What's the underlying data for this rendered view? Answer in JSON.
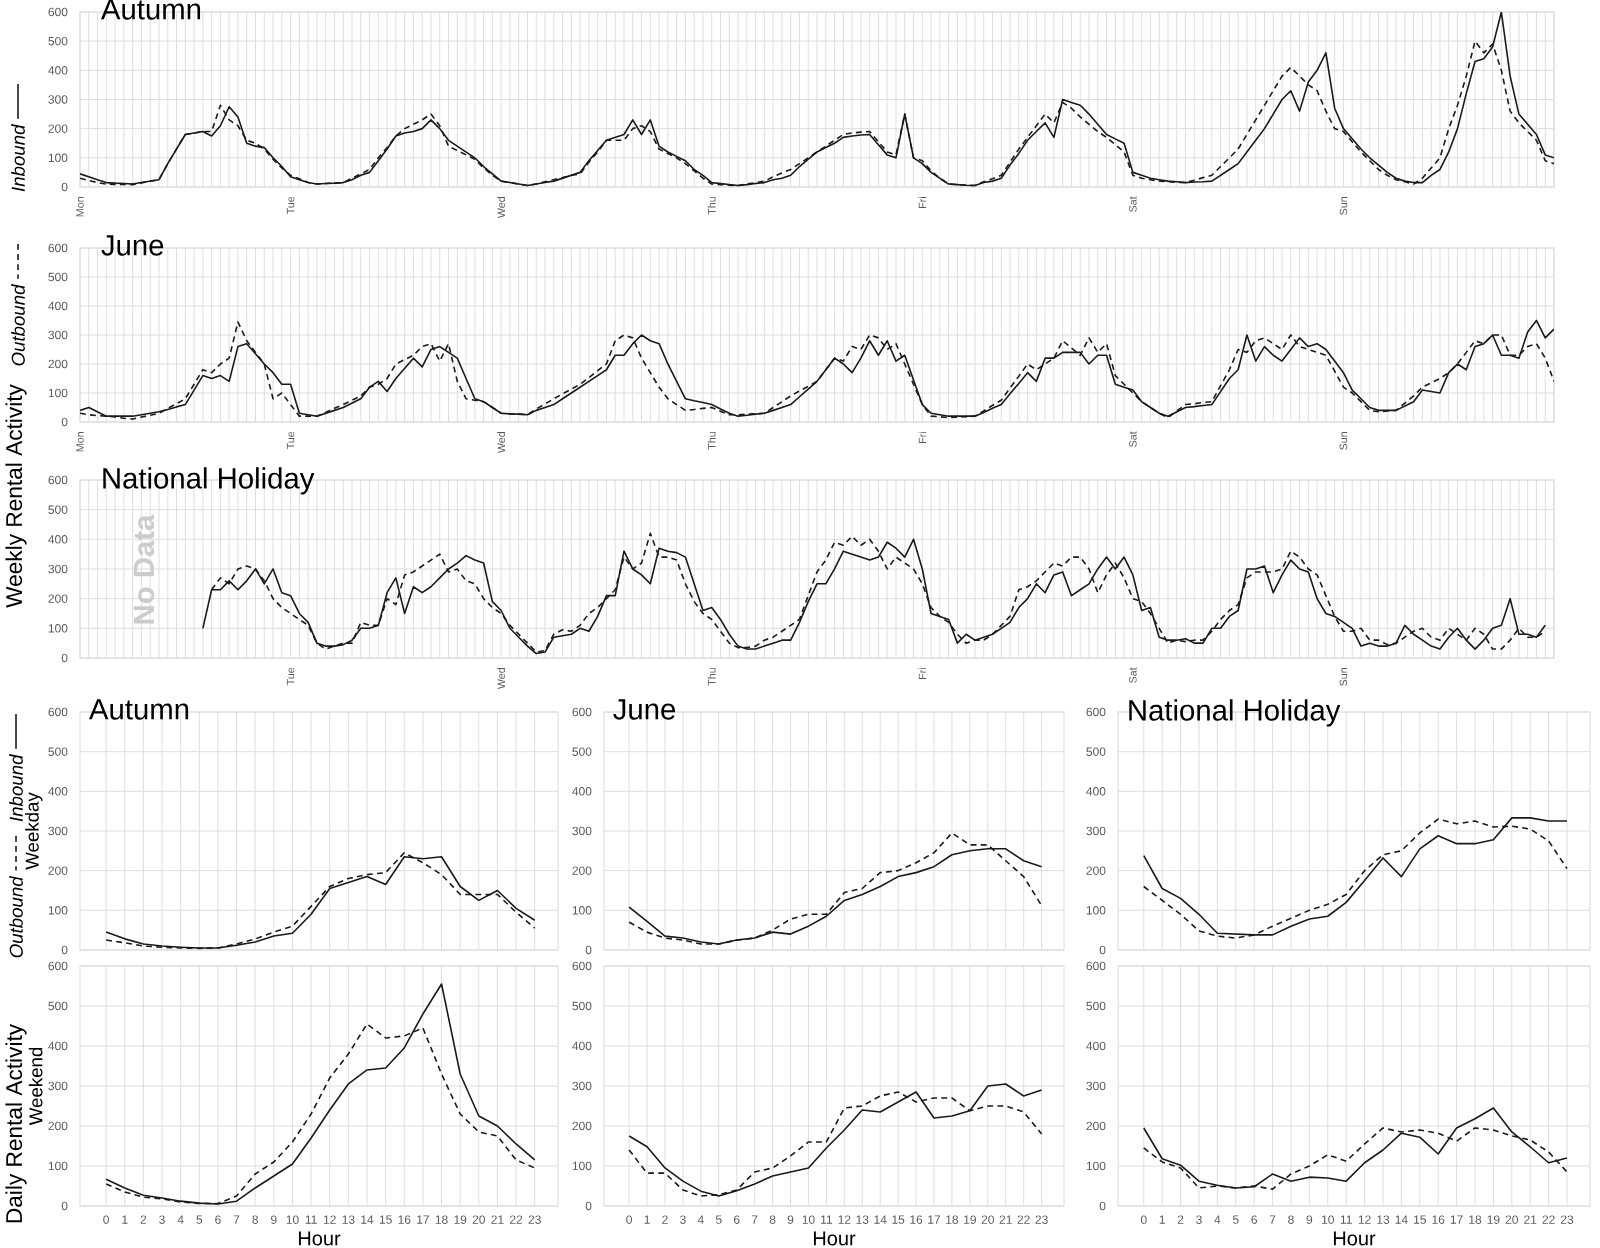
{
  "chart_data": [
    {
      "type": "line",
      "title": "Autumn",
      "legend": "left",
      "grid": true,
      "ylim": [
        0,
        600
      ],
      "yticks": [
        0,
        100,
        200,
        300,
        400,
        500,
        600
      ],
      "categories": [
        "Mon",
        null,
        null,
        null,
        null,
        null,
        null,
        null,
        null,
        null,
        null,
        null,
        null,
        null,
        null,
        null,
        null,
        null,
        null,
        null,
        null,
        null,
        null,
        null,
        "Tue",
        null,
        null,
        null,
        null,
        null,
        null,
        null,
        null,
        null,
        null,
        null,
        null,
        null,
        null,
        null,
        null,
        null,
        null,
        null,
        null,
        null,
        null,
        null,
        "Wed",
        null,
        null,
        null,
        null,
        null,
        null,
        null,
        null,
        null,
        null,
        null,
        null,
        null,
        null,
        null,
        null,
        null,
        null,
        null,
        null,
        null,
        null,
        null,
        "Thu",
        null,
        null,
        null,
        null,
        null,
        null,
        null,
        null,
        null,
        null,
        null,
        null,
        null,
        null,
        null,
        null,
        null,
        null,
        null,
        null,
        null,
        null,
        null,
        "Fri",
        null,
        null,
        null,
        null,
        null,
        null,
        null,
        null,
        null,
        null,
        null,
        null,
        null,
        null,
        null,
        null,
        null,
        null,
        null,
        null,
        null,
        null,
        null,
        "Sat",
        null,
        null,
        null,
        null,
        null,
        null,
        null,
        null,
        null,
        null,
        null,
        null,
        null,
        null,
        null,
        null,
        null,
        null,
        null,
        null,
        null,
        null,
        null,
        "Sun",
        null,
        null,
        null,
        null,
        null,
        null,
        null,
        null,
        null,
        null,
        null,
        null,
        null,
        null,
        null,
        null,
        null,
        null,
        null,
        null,
        null,
        null,
        null,
        null
      ],
      "series": [
        {
          "name": "Inbound",
          "color": "#1a1a1a",
          "line_style": "solid",
          "values": [
            45,
            35,
            25,
            15,
            13,
            12,
            10,
            15,
            20,
            25,
            80,
            130,
            180,
            185,
            190,
            175,
            210,
            275,
            240,
            150,
            140,
            135,
            100,
            70,
            35,
            25,
            15,
            10,
            12,
            13,
            15,
            25,
            40,
            50,
            90,
            130,
            175,
            185,
            190,
            200,
            230,
            200,
            160,
            140,
            120,
            100,
            70,
            45,
            20,
            15,
            10,
            5,
            10,
            15,
            20,
            30,
            40,
            50,
            90,
            125,
            160,
            170,
            180,
            230,
            180,
            230,
            140,
            120,
            105,
            90,
            60,
            40,
            15,
            12,
            8,
            5,
            8,
            12,
            15,
            25,
            30,
            40,
            70,
            95,
            120,
            135,
            150,
            170,
            175,
            178,
            180,
            145,
            110,
            100,
            250,
            100,
            80,
            50,
            30,
            10,
            8,
            6,
            5,
            15,
            20,
            30,
            75,
            115,
            160,
            190,
            220,
            170,
            300,
            290,
            280,
            250,
            215,
            180,
            165,
            150,
            50,
            40,
            30,
            25,
            20,
            18,
            15,
            17,
            18,
            20,
            40,
            60,
            80,
            120,
            160,
            200,
            250,
            300,
            330,
            260,
            360,
            400,
            460,
            270,
            200,
            165,
            130,
            100,
            75,
            50,
            30,
            20,
            15,
            15,
            40,
            60,
            120,
            200,
            320,
            430,
            440,
            480,
            600,
            380,
            250,
            215,
            180,
            110,
            100
          ]
        },
        {
          "color": "#1a1a1a",
          "line_style": "dashed",
          "values": [
            30,
            22,
            15,
            10,
            9,
            9,
            8,
            14,
            20,
            25,
            80,
            130,
            180,
            185,
            190,
            190,
            280,
            230,
            210,
            160,
            150,
            130,
            95,
            65,
            40,
            28,
            15,
            10,
            12,
            13,
            15,
            30,
            45,
            60,
            100,
            135,
            175,
            200,
            215,
            230,
            250,
            210,
            140,
            125,
            110,
            95,
            65,
            40,
            20,
            15,
            10,
            5,
            10,
            18,
            25,
            32,
            40,
            45,
            85,
            120,
            160,
            160,
            160,
            200,
            210,
            190,
            130,
            115,
            100,
            80,
            55,
            30,
            10,
            8,
            6,
            5,
            10,
            15,
            20,
            35,
            48,
            60,
            80,
            100,
            120,
            140,
            160,
            180,
            185,
            188,
            190,
            155,
            120,
            110,
            250,
            100,
            90,
            55,
            30,
            10,
            8,
            6,
            5,
            18,
            28,
            40,
            85,
            130,
            170,
            210,
            250,
            220,
            290,
            270,
            240,
            215,
            190,
            170,
            145,
            120,
            40,
            30,
            25,
            20,
            18,
            16,
            15,
            23,
            32,
            40,
            70,
            100,
            130,
            180,
            230,
            280,
            330,
            380,
            410,
            380,
            350,
            330,
            260,
            200,
            190,
            155,
            120,
            90,
            60,
            40,
            25,
            18,
            10,
            30,
            65,
            100,
            200,
            280,
            380,
            500,
            460,
            490,
            400,
            260,
            220,
            190,
            160,
            90,
            80
          ]
        }
      ]
    },
    {
      "type": "line",
      "title": "June",
      "legend": "left",
      "grid": true,
      "ylim": [
        0,
        600
      ],
      "yticks": [
        0,
        100,
        200,
        300,
        400,
        500,
        600
      ],
      "annotations": [
        "Weekly Rental Activity"
      ],
      "categories": [
        "Mon",
        null,
        null,
        null,
        null,
        null,
        null,
        null,
        null,
        null,
        null,
        null,
        null,
        null,
        null,
        null,
        null,
        null,
        null,
        null,
        null,
        null,
        null,
        null,
        "Tue",
        null,
        null,
        null,
        null,
        null,
        null,
        null,
        null,
        null,
        null,
        null,
        null,
        null,
        null,
        null,
        null,
        null,
        null,
        null,
        null,
        null,
        null,
        null,
        "Wed",
        null,
        null,
        null,
        null,
        null,
        null,
        null,
        null,
        null,
        null,
        null,
        null,
        null,
        null,
        null,
        null,
        null,
        null,
        null,
        null,
        null,
        null,
        null,
        "Thu",
        null,
        null,
        null,
        null,
        null,
        null,
        null,
        null,
        null,
        null,
        null,
        null,
        null,
        null,
        null,
        null,
        null,
        null,
        null,
        null,
        null,
        null,
        null,
        "Fri",
        null,
        null,
        null,
        null,
        null,
        null,
        null,
        null,
        null,
        null,
        null,
        null,
        null,
        null,
        null,
        null,
        null,
        null,
        null,
        null,
        null,
        null,
        null,
        "Sat",
        null,
        null,
        null,
        null,
        null,
        null,
        null,
        null,
        null,
        null,
        null,
        null,
        null,
        null,
        null,
        null,
        null,
        null,
        null,
        null,
        null,
        null,
        null,
        "Sun",
        null,
        null,
        null,
        null,
        null,
        null,
        null,
        null,
        null,
        null,
        null,
        null,
        null,
        null,
        null,
        null,
        null,
        null,
        null,
        null,
        null,
        null,
        null,
        null
      ],
      "series": [
        {
          "color": "#1a1a1a",
          "line_style": "solid",
          "values": [
            40,
            50,
            35,
            20,
            20,
            20,
            20,
            25,
            30,
            35,
            43,
            52,
            60,
            110,
            160,
            150,
            160,
            140,
            260,
            270,
            235,
            200,
            170,
            130,
            130,
            30,
            25,
            20,
            30,
            40,
            50,
            65,
            80,
            120,
            140,
            105,
            150,
            185,
            220,
            190,
            250,
            260,
            240,
            220,
            150,
            80,
            70,
            50,
            30,
            28,
            27,
            25,
            40,
            50,
            60,
            80,
            100,
            120,
            140,
            160,
            180,
            230,
            230,
            270,
            300,
            280,
            270,
            200,
            140,
            80,
            73,
            67,
            60,
            45,
            30,
            20,
            23,
            27,
            30,
            40,
            50,
            60,
            87,
            113,
            140,
            180,
            220,
            200,
            170,
            220,
            280,
            230,
            280,
            210,
            230,
            145,
            60,
            30,
            25,
            20,
            20,
            20,
            20,
            33,
            47,
            60,
            97,
            133,
            170,
            140,
            220,
            220,
            240,
            240,
            240,
            200,
            230,
            230,
            130,
            120,
            110,
            70,
            50,
            30,
            20,
            35,
            50,
            53,
            57,
            60,
            105,
            150,
            180,
            300,
            210,
            260,
            230,
            210,
            250,
            290,
            260,
            270,
            250,
            210,
            170,
            110,
            80,
            50,
            40,
            40,
            40,
            55,
            70,
            110,
            105,
            100,
            170,
            200,
            180,
            260,
            270,
            300,
            230,
            230,
            220,
            310,
            350,
            290,
            320
          ]
        },
        {
          "name": "Outbound",
          "color": "#1a1a1a",
          "line_style": "dashed",
          "values": [
            30,
            25,
            22,
            20,
            17,
            13,
            10,
            17,
            23,
            30,
            47,
            63,
            80,
            130,
            180,
            170,
            200,
            220,
            345,
            280,
            240,
            200,
            80,
            100,
            60,
            20,
            20,
            20,
            33,
            47,
            60,
            75,
            90,
            120,
            130,
            150,
            200,
            215,
            230,
            260,
            270,
            210,
            270,
            140,
            80,
            75,
            70,
            50,
            30,
            28,
            27,
            25,
            45,
            62,
            80,
            97,
            113,
            130,
            153,
            177,
            200,
            280,
            300,
            290,
            220,
            170,
            120,
            80,
            60,
            40,
            43,
            47,
            50,
            37,
            25,
            25,
            27,
            28,
            30,
            50,
            70,
            90,
            107,
            123,
            140,
            180,
            220,
            210,
            260,
            250,
            300,
            290,
            250,
            270,
            200,
            130,
            60,
            20,
            18,
            15,
            17,
            18,
            20,
            38,
            57,
            75,
            117,
            158,
            200,
            180,
            200,
            220,
            280,
            255,
            230,
            290,
            240,
            270,
            160,
            130,
            100,
            70,
            50,
            30,
            15,
            38,
            60,
            63,
            67,
            70,
            125,
            180,
            250,
            240,
            280,
            290,
            270,
            250,
            300,
            260,
            250,
            240,
            230,
            175,
            120,
            100,
            70,
            40,
            35,
            38,
            40,
            65,
            90,
            120,
            135,
            150,
            170,
            200,
            240,
            280,
            270,
            300,
            300,
            230,
            230,
            260,
            270,
            220,
            140
          ]
        }
      ]
    },
    {
      "type": "line",
      "title": "National Holiday",
      "grid": true,
      "ylim": [
        0,
        600
      ],
      "yticks": [
        0,
        100,
        200,
        300,
        400,
        500,
        600
      ],
      "annotations": [
        "No Data"
      ],
      "categories": [
        null,
        null,
        null,
        null,
        null,
        null,
        null,
        null,
        null,
        null,
        null,
        null,
        null,
        null,
        null,
        null,
        null,
        null,
        null,
        null,
        null,
        null,
        null,
        null,
        "Tue",
        null,
        null,
        null,
        null,
        null,
        null,
        null,
        null,
        null,
        null,
        null,
        null,
        null,
        null,
        null,
        null,
        null,
        null,
        null,
        null,
        null,
        null,
        null,
        "Wed",
        null,
        null,
        null,
        null,
        null,
        null,
        null,
        null,
        null,
        null,
        null,
        null,
        null,
        null,
        null,
        null,
        null,
        null,
        null,
        null,
        null,
        null,
        null,
        "Thu",
        null,
        null,
        null,
        null,
        null,
        null,
        null,
        null,
        null,
        null,
        null,
        null,
        null,
        null,
        null,
        null,
        null,
        null,
        null,
        null,
        null,
        null,
        null,
        "Fri",
        null,
        null,
        null,
        null,
        null,
        null,
        null,
        null,
        null,
        null,
        null,
        null,
        null,
        null,
        null,
        null,
        null,
        null,
        null,
        null,
        null,
        null,
        null,
        "Sat",
        null,
        null,
        null,
        null,
        null,
        null,
        null,
        null,
        null,
        null,
        null,
        null,
        null,
        null,
        null,
        null,
        null,
        null,
        null,
        null,
        null,
        null,
        null,
        "Sun",
        null,
        null,
        null,
        null,
        null,
        null,
        null,
        null,
        null,
        null,
        null,
        null,
        null,
        null,
        null,
        null,
        null,
        null,
        null,
        null,
        null,
        null,
        null,
        null
      ],
      "series": [
        {
          "color": "#1a1a1a",
          "line_style": "solid",
          "values": [
            null,
            null,
            null,
            null,
            null,
            null,
            null,
            null,
            null,
            null,
            null,
            null,
            null,
            null,
            100,
            230,
            230,
            260,
            230,
            260,
            300,
            250,
            300,
            220,
            210,
            150,
            120,
            50,
            40,
            40,
            45,
            60,
            100,
            100,
            110,
            220,
            270,
            150,
            240,
            220,
            240,
            270,
            300,
            320,
            345,
            330,
            320,
            190,
            160,
            100,
            70,
            40,
            15,
            20,
            70,
            75,
            80,
            100,
            90,
            140,
            210,
            210,
            360,
            300,
            280,
            250,
            370,
            360,
            355,
            340,
            250,
            160,
            170,
            130,
            80,
            40,
            30,
            30,
            40,
            50,
            60,
            60,
            120,
            190,
            250,
            250,
            300,
            360,
            350,
            340,
            330,
            340,
            390,
            370,
            340,
            400,
            300,
            150,
            140,
            130,
            50,
            80,
            60,
            70,
            80,
            100,
            120,
            170,
            200,
            250,
            220,
            280,
            290,
            210,
            230,
            250,
            300,
            340,
            300,
            340,
            280,
            160,
            170,
            70,
            60,
            60,
            65,
            50,
            50,
            100,
            100,
            140,
            160,
            300,
            300,
            310,
            220,
            280,
            330,
            300,
            290,
            200,
            150,
            140,
            120,
            100,
            40,
            50,
            40,
            40,
            50,
            110,
            80,
            60,
            40,
            30,
            70,
            100,
            60,
            30,
            60,
            100,
            110,
            200,
            80,
            80,
            70,
            110,
            null
          ]
        },
        {
          "color": "#1a1a1a",
          "line_style": "dashed",
          "values": [
            null,
            null,
            null,
            null,
            null,
            null,
            null,
            null,
            null,
            null,
            null,
            null,
            null,
            null,
            null,
            230,
            270,
            250,
            300,
            310,
            300,
            260,
            200,
            170,
            150,
            130,
            110,
            50,
            30,
            40,
            50,
            50,
            120,
            110,
            110,
            200,
            180,
            280,
            290,
            310,
            330,
            350,
            290,
            300,
            260,
            250,
            200,
            170,
            150,
            110,
            80,
            50,
            20,
            25,
            80,
            95,
            90,
            110,
            150,
            170,
            200,
            230,
            340,
            300,
            320,
            420,
            340,
            340,
            330,
            250,
            190,
            150,
            130,
            90,
            50,
            35,
            35,
            40,
            60,
            70,
            90,
            110,
            130,
            210,
            290,
            330,
            390,
            380,
            410,
            380,
            400,
            360,
            300,
            340,
            320,
            300,
            250,
            170,
            140,
            120,
            80,
            50,
            60,
            60,
            80,
            110,
            140,
            230,
            240,
            260,
            290,
            320,
            310,
            340,
            340,
            300,
            220,
            280,
            320,
            270,
            200,
            190,
            150,
            100,
            50,
            60,
            55,
            60,
            60,
            90,
            130,
            160,
            180,
            270,
            290,
            290,
            290,
            300,
            360,
            340,
            300,
            280,
            210,
            140,
            90,
            90,
            100,
            60,
            60,
            45,
            50,
            70,
            90,
            100,
            70,
            60,
            100,
            80,
            60,
            100,
            80,
            30,
            30,
            60,
            100,
            70,
            70,
            90,
            null
          ]
        }
      ]
    },
    {
      "type": "line",
      "title": "Autumn",
      "ylabel": "Weekday",
      "legend": "left",
      "grid": true,
      "tick_labels": "y",
      "xlim": [
        -1.4,
        24.25
      ],
      "ylim": [
        0,
        600
      ],
      "yticks": [
        0,
        100,
        200,
        300,
        400,
        500,
        600
      ],
      "xticks": [
        0,
        1,
        2,
        3,
        4,
        5,
        6,
        7,
        8,
        9,
        10,
        11,
        12,
        13,
        14,
        15,
        16,
        17,
        18,
        19,
        20,
        21,
        22,
        23
      ],
      "x": [
        0,
        1,
        2,
        3,
        4,
        5,
        6,
        7,
        8,
        9,
        10,
        11,
        12,
        13,
        14,
        15,
        16,
        17,
        18,
        19,
        20,
        21,
        22,
        23
      ],
      "series": [
        {
          "name": "Inbound",
          "color": "#1a1a1a",
          "line_style": "solid",
          "values": [
            45,
            28,
            15,
            10,
            7,
            5,
            5,
            12,
            20,
            35,
            42,
            90,
            155,
            170,
            185,
            165,
            235,
            230,
            235,
            160,
            125,
            150,
            105,
            75
          ]
        },
        {
          "name": "Outbound",
          "color": "#1a1a1a",
          "line_style": "dashed",
          "values": [
            25,
            18,
            10,
            7,
            5,
            4,
            5,
            15,
            28,
            45,
            60,
            110,
            160,
            180,
            190,
            195,
            245,
            220,
            190,
            140,
            140,
            140,
            95,
            55
          ]
        }
      ]
    },
    {
      "type": "line",
      "title": "June",
      "grid": true,
      "tick_labels": "y",
      "xlim": [
        -1.4,
        24.25
      ],
      "ylim": [
        0,
        600
      ],
      "yticks": [
        0,
        100,
        200,
        300,
        400,
        500,
        600
      ],
      "xticks": [
        0,
        1,
        2,
        3,
        4,
        5,
        6,
        7,
        8,
        9,
        10,
        11,
        12,
        13,
        14,
        15,
        16,
        17,
        18,
        19,
        20,
        21,
        22,
        23
      ],
      "x": [
        0,
        1,
        2,
        3,
        4,
        5,
        6,
        7,
        8,
        9,
        10,
        11,
        12,
        13,
        14,
        15,
        16,
        17,
        18,
        19,
        20,
        21,
        22,
        23
      ],
      "series": [
        {
          "color": "#1a1a1a",
          "line_style": "solid",
          "values": [
            108,
            72,
            35,
            30,
            20,
            15,
            25,
            30,
            45,
            40,
            60,
            85,
            125,
            140,
            160,
            185,
            195,
            210,
            240,
            250,
            255,
            255,
            225,
            210
          ]
        },
        {
          "color": "#1a1a1a",
          "line_style": "dashed",
          "values": [
            70,
            45,
            30,
            25,
            15,
            15,
            25,
            30,
            50,
            78,
            90,
            90,
            145,
            155,
            195,
            200,
            220,
            245,
            295,
            265,
            265,
            225,
            185,
            112
          ]
        }
      ]
    },
    {
      "type": "line",
      "title": "National Holiday",
      "grid": true,
      "tick_labels": "y",
      "xlim": [
        -1.4,
        24.25
      ],
      "ylim": [
        0,
        600
      ],
      "yticks": [
        0,
        100,
        200,
        300,
        400,
        500,
        600
      ],
      "xticks": [
        0,
        1,
        2,
        3,
        4,
        5,
        6,
        7,
        8,
        9,
        10,
        11,
        12,
        13,
        14,
        15,
        16,
        17,
        18,
        19,
        20,
        21,
        22,
        23
      ],
      "x": [
        0,
        1,
        2,
        3,
        4,
        5,
        6,
        7,
        8,
        9,
        10,
        11,
        12,
        13,
        14,
        15,
        16,
        17,
        18,
        19,
        20,
        21,
        22,
        23
      ],
      "series": [
        {
          "color": "#1a1a1a",
          "line_style": "solid",
          "values": [
            238,
            155,
            130,
            90,
            42,
            40,
            38,
            38,
            60,
            78,
            85,
            120,
            175,
            232,
            185,
            255,
            288,
            268,
            268,
            278,
            333,
            333,
            325,
            325
          ]
        },
        {
          "color": "#1a1a1a",
          "line_style": "dashed",
          "values": [
            160,
            125,
            90,
            48,
            35,
            30,
            38,
            60,
            80,
            100,
            115,
            140,
            200,
            240,
            250,
            295,
            330,
            318,
            325,
            310,
            312,
            305,
            275,
            205
          ]
        }
      ]
    },
    {
      "type": "line",
      "xlabel": "Hour",
      "ylabel": "Weekend",
      "annotations": [
        "Daily Rental Activity"
      ],
      "grid": true,
      "xlim": [
        -1.4,
        24.25
      ],
      "ylim": [
        0,
        600
      ],
      "yticks": [
        0,
        100,
        200,
        300,
        400,
        500,
        600
      ],
      "xticks": [
        0,
        1,
        2,
        3,
        4,
        5,
        6,
        7,
        8,
        9,
        10,
        11,
        12,
        13,
        14,
        15,
        16,
        17,
        18,
        19,
        20,
        21,
        22,
        23
      ],
      "x": [
        0,
        1,
        2,
        3,
        4,
        5,
        6,
        7,
        8,
        9,
        10,
        11,
        12,
        13,
        14,
        15,
        16,
        17,
        18,
        19,
        20,
        21,
        22,
        23
      ],
      "series": [
        {
          "color": "#1a1a1a",
          "line_style": "solid",
          "values": [
            67,
            45,
            27,
            20,
            12,
            7,
            5,
            12,
            45,
            75,
            105,
            170,
            240,
            305,
            340,
            345,
            395,
            480,
            555,
            330,
            225,
            200,
            155,
            115
          ]
        },
        {
          "color": "#1a1a1a",
          "line_style": "dashed",
          "values": [
            55,
            35,
            22,
            18,
            10,
            6,
            6,
            25,
            80,
            110,
            160,
            230,
            320,
            380,
            455,
            420,
            425,
            445,
            330,
            230,
            185,
            175,
            115,
            95
          ]
        }
      ]
    },
    {
      "type": "line",
      "xlabel": "Hour",
      "grid": true,
      "xlim": [
        -1.4,
        24.25
      ],
      "ylim": [
        0,
        600
      ],
      "yticks": [
        0,
        100,
        200,
        300,
        400,
        500,
        600
      ],
      "xticks": [
        0,
        1,
        2,
        3,
        4,
        5,
        6,
        7,
        8,
        9,
        10,
        11,
        12,
        13,
        14,
        15,
        16,
        17,
        18,
        19,
        20,
        21,
        22,
        23
      ],
      "x": [
        0,
        1,
        2,
        3,
        4,
        5,
        6,
        7,
        8,
        9,
        10,
        11,
        12,
        13,
        14,
        15,
        16,
        17,
        18,
        19,
        20,
        21,
        22,
        23
      ],
      "series": [
        {
          "color": "#1a1a1a",
          "line_style": "solid",
          "values": [
            175,
            148,
            95,
            62,
            37,
            25,
            38,
            55,
            75,
            85,
            95,
            145,
            190,
            240,
            235,
            260,
            285,
            220,
            225,
            238,
            300,
            305,
            275,
            290
          ]
        },
        {
          "color": "#1a1a1a",
          "line_style": "dashed",
          "values": [
            140,
            82,
            82,
            40,
            25,
            28,
            40,
            85,
            95,
            125,
            160,
            160,
            245,
            250,
            275,
            285,
            260,
            270,
            270,
            238,
            250,
            250,
            235,
            180
          ]
        }
      ]
    },
    {
      "type": "line",
      "xlabel": "Hour",
      "grid": true,
      "xlim": [
        -1.4,
        24.25
      ],
      "ylim": [
        0,
        600
      ],
      "yticks": [
        0,
        100,
        200,
        300,
        400,
        500,
        600
      ],
      "xticks": [
        0,
        1,
        2,
        3,
        4,
        5,
        6,
        7,
        8,
        9,
        10,
        11,
        12,
        13,
        14,
        15,
        16,
        17,
        18,
        19,
        20,
        21,
        22,
        23
      ],
      "x": [
        0,
        1,
        2,
        3,
        4,
        5,
        6,
        7,
        8,
        9,
        10,
        11,
        12,
        13,
        14,
        15,
        16,
        17,
        18,
        19,
        20,
        21,
        22,
        23
      ],
      "series": [
        {
          "color": "#1a1a1a",
          "line_style": "solid",
          "values": [
            195,
            118,
            102,
            62,
            52,
            45,
            48,
            80,
            62,
            72,
            70,
            62,
            108,
            140,
            182,
            172,
            130,
            195,
            218,
            245,
            185,
            148,
            108,
            120
          ]
        },
        {
          "color": "#1a1a1a",
          "line_style": "dashed",
          "values": [
            145,
            110,
            95,
            45,
            50,
            45,
            50,
            42,
            80,
            100,
            128,
            112,
            155,
            195,
            185,
            190,
            182,
            162,
            195,
            190,
            175,
            165,
            135,
            85
          ]
        }
      ]
    }
  ]
}
